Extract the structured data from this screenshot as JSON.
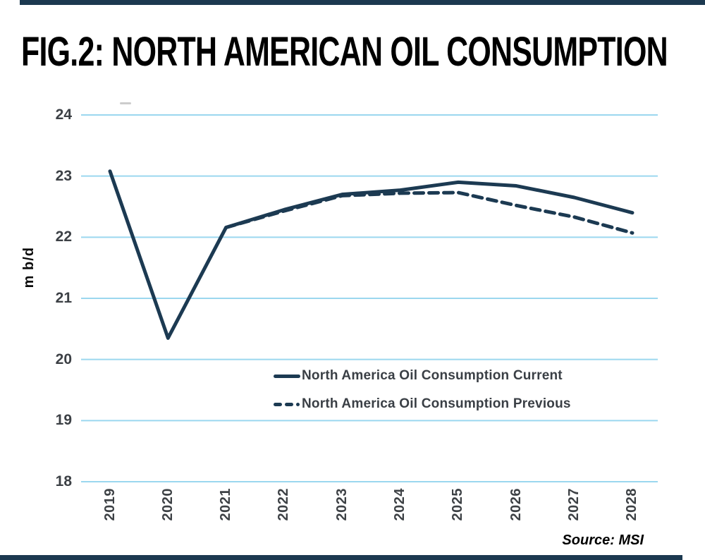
{
  "page": {
    "title": "FIG.2: NORTH AMERICAN OIL CONSUMPTION",
    "source": "Source: MSI",
    "accent_bar_color": "#1c3950"
  },
  "chart_data": {
    "type": "line",
    "title": "FIG.2: NORTH AMERICAN OIL CONSUMPTION",
    "xlabel": "",
    "ylabel": "m b/d",
    "ylim": [
      18,
      24
    ],
    "yticks": [
      24,
      23,
      22,
      21,
      20,
      19,
      18
    ],
    "categories": [
      2019,
      2020,
      2021,
      2022,
      2023,
      2024,
      2025,
      2026,
      2027,
      2028
    ],
    "grid": "horizontal",
    "legend_position": "inside-lower-center",
    "colors": {
      "line": "#1c3a52",
      "gridline": "#9bd7ef",
      "tick_label": "#3d4145"
    },
    "series": [
      {
        "name": "North America Oil Consumption Current",
        "style": "solid",
        "x": [
          2019,
          2020,
          2021,
          2022,
          2023,
          2024,
          2025,
          2026,
          2027,
          2028
        ],
        "values": [
          23.08,
          20.35,
          22.16,
          22.45,
          22.7,
          22.77,
          22.9,
          22.84,
          22.65,
          22.4
        ]
      },
      {
        "name": "North America Oil Consumption Previous",
        "style": "dashed",
        "x": [
          2021,
          2022,
          2023,
          2024,
          2025,
          2026,
          2027,
          2028
        ],
        "values": [
          22.16,
          22.43,
          22.68,
          22.72,
          22.73,
          22.52,
          22.33,
          22.07
        ]
      }
    ]
  }
}
